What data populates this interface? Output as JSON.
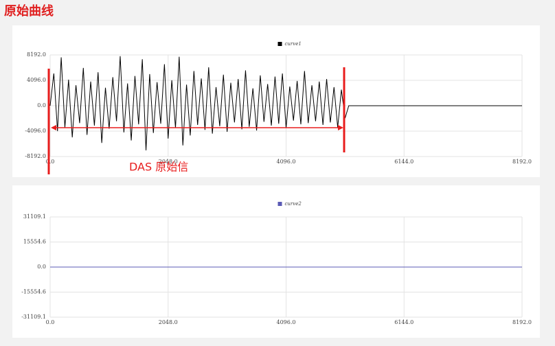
{
  "title": "原始曲线",
  "chart_data": [
    {
      "type": "line",
      "annotation": "DAS 原始信",
      "x": [
        0,
        64,
        128,
        192,
        256,
        320,
        384,
        448,
        512,
        576,
        640,
        704,
        768,
        832,
        896,
        960,
        1024,
        1088,
        1152,
        1216,
        1280,
        1344,
        1408,
        1472,
        1536,
        1600,
        1664,
        1728,
        1792,
        1856,
        1920,
        1984,
        2048,
        2112,
        2176,
        2240,
        2304,
        2368,
        2432,
        2496,
        2560,
        2624,
        2688,
        2752,
        2816,
        2880,
        2944,
        3008,
        3072,
        3136,
        3200,
        3264,
        3328,
        3392,
        3456,
        3520,
        3584,
        3648,
        3712,
        3776,
        3840,
        3904,
        3968,
        4032,
        4096,
        4160,
        4224,
        4288,
        4352,
        4416,
        4480,
        4544,
        4608,
        4672,
        4736,
        4800,
        4864,
        4928,
        4992,
        5056,
        5120,
        5184,
        6144,
        7168,
        8192
      ],
      "series": [
        {
          "name": "curve1",
          "color": "#000000",
          "values": [
            0,
            5200,
            -4100,
            7800,
            -3500,
            4200,
            -5100,
            3300,
            -2800,
            6100,
            -4700,
            3900,
            -3200,
            5400,
            -6000,
            2900,
            -3700,
            4600,
            -2500,
            8000,
            -4300,
            3600,
            -5600,
            4800,
            -3000,
            7500,
            -7200,
            5100,
            -4400,
            3800,
            -2900,
            6700,
            -5300,
            4100,
            -3600,
            7900,
            -6400,
            3400,
            -4800,
            5600,
            -3100,
            4400,
            -3900,
            6200,
            -4500,
            3000,
            -3300,
            5000,
            -4200,
            3700,
            -2700,
            4300,
            -3800,
            5700,
            -3400,
            2800,
            -4000,
            4900,
            -2600,
            3500,
            -3200,
            4700,
            -2900,
            5200,
            -3600,
            3100,
            -2400,
            4000,
            -3000,
            5600,
            -2800,
            3300,
            -2500,
            3900,
            -3100,
            4300,
            -2700,
            3000,
            -3500,
            2600,
            -2000,
            0,
            0,
            0,
            0
          ]
        }
      ],
      "xlim": [
        0,
        8192
      ],
      "xticks": [
        {
          "value": 0,
          "label": "0.0"
        },
        {
          "value": 2048,
          "label": "2048.0"
        },
        {
          "value": 4096,
          "label": "4096.0"
        },
        {
          "value": 6144,
          "label": "6144.0"
        },
        {
          "value": 8192,
          "label": "8192.0"
        }
      ],
      "ylim": [
        -8192,
        8192
      ],
      "yticks": [
        {
          "value": 8192,
          "label": "8192.0"
        },
        {
          "value": 4096,
          "label": "4096.0"
        },
        {
          "value": 0,
          "label": "0.0"
        },
        {
          "value": -4096,
          "label": "-4096.0"
        },
        {
          "value": -8192,
          "label": "-8192.0"
        }
      ],
      "grid": true
    },
    {
      "type": "line",
      "x": [
        0,
        8192
      ],
      "series": [
        {
          "name": "curve2",
          "color": "#5a5ab4",
          "values": [
            0,
            0
          ]
        }
      ],
      "xlim": [
        0,
        8192
      ],
      "xticks": [
        {
          "value": 0,
          "label": "0.0"
        },
        {
          "value": 2048,
          "label": "2048.0"
        },
        {
          "value": 4096,
          "label": "4096.0"
        },
        {
          "value": 6144,
          "label": "6144.0"
        },
        {
          "value": 8192,
          "label": "8192.0"
        }
      ],
      "ylim": [
        -31109.1,
        31109.1
      ],
      "yticks": [
        {
          "value": 31109.1,
          "label": "31109.1"
        },
        {
          "value": 15554.6,
          "label": "15554.6"
        },
        {
          "value": 0,
          "label": "0.0"
        },
        {
          "value": -15554.6,
          "label": "-15554.6"
        },
        {
          "value": -31109.1,
          "label": "-31109.1"
        }
      ],
      "grid": true
    }
  ]
}
